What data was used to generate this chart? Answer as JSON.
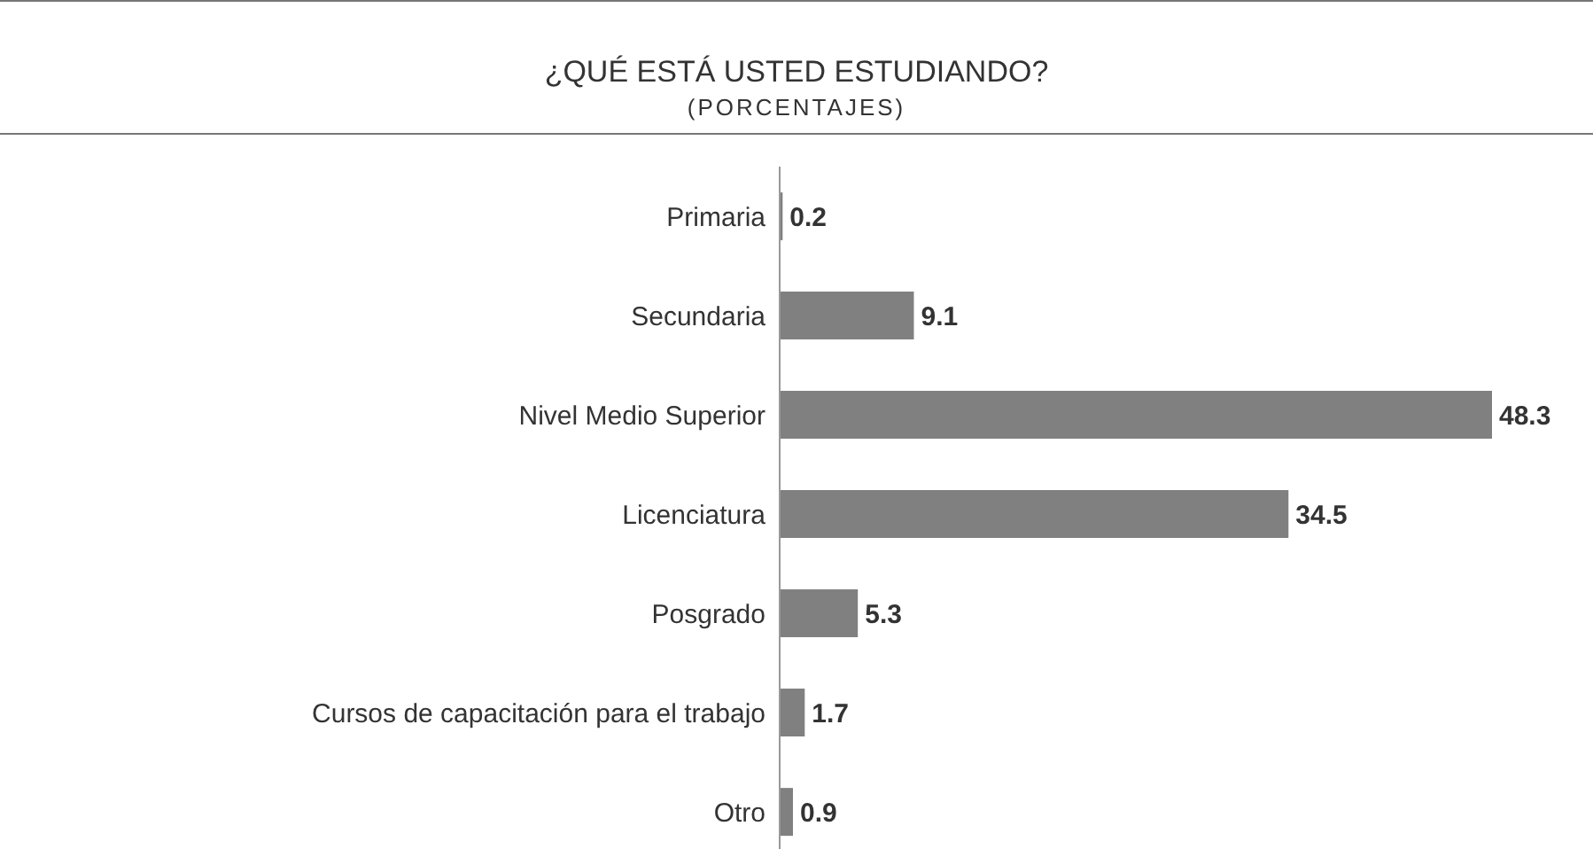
{
  "chart_data": {
    "type": "bar",
    "orientation": "horizontal",
    "title": "¿QUÉ ESTÁ USTED ESTUDIANDO?",
    "subtitle": "(PORCENTAJES)",
    "categories": [
      "Primaria",
      "Secundaria",
      "Nivel Medio Superior",
      "Licenciatura",
      "Posgrado",
      "Cursos de capacitación para el trabajo",
      "Otro"
    ],
    "values": [
      0.2,
      9.1,
      48.3,
      34.5,
      5.3,
      1.7,
      0.9
    ],
    "color": "#808080",
    "data_labels": true
  }
}
